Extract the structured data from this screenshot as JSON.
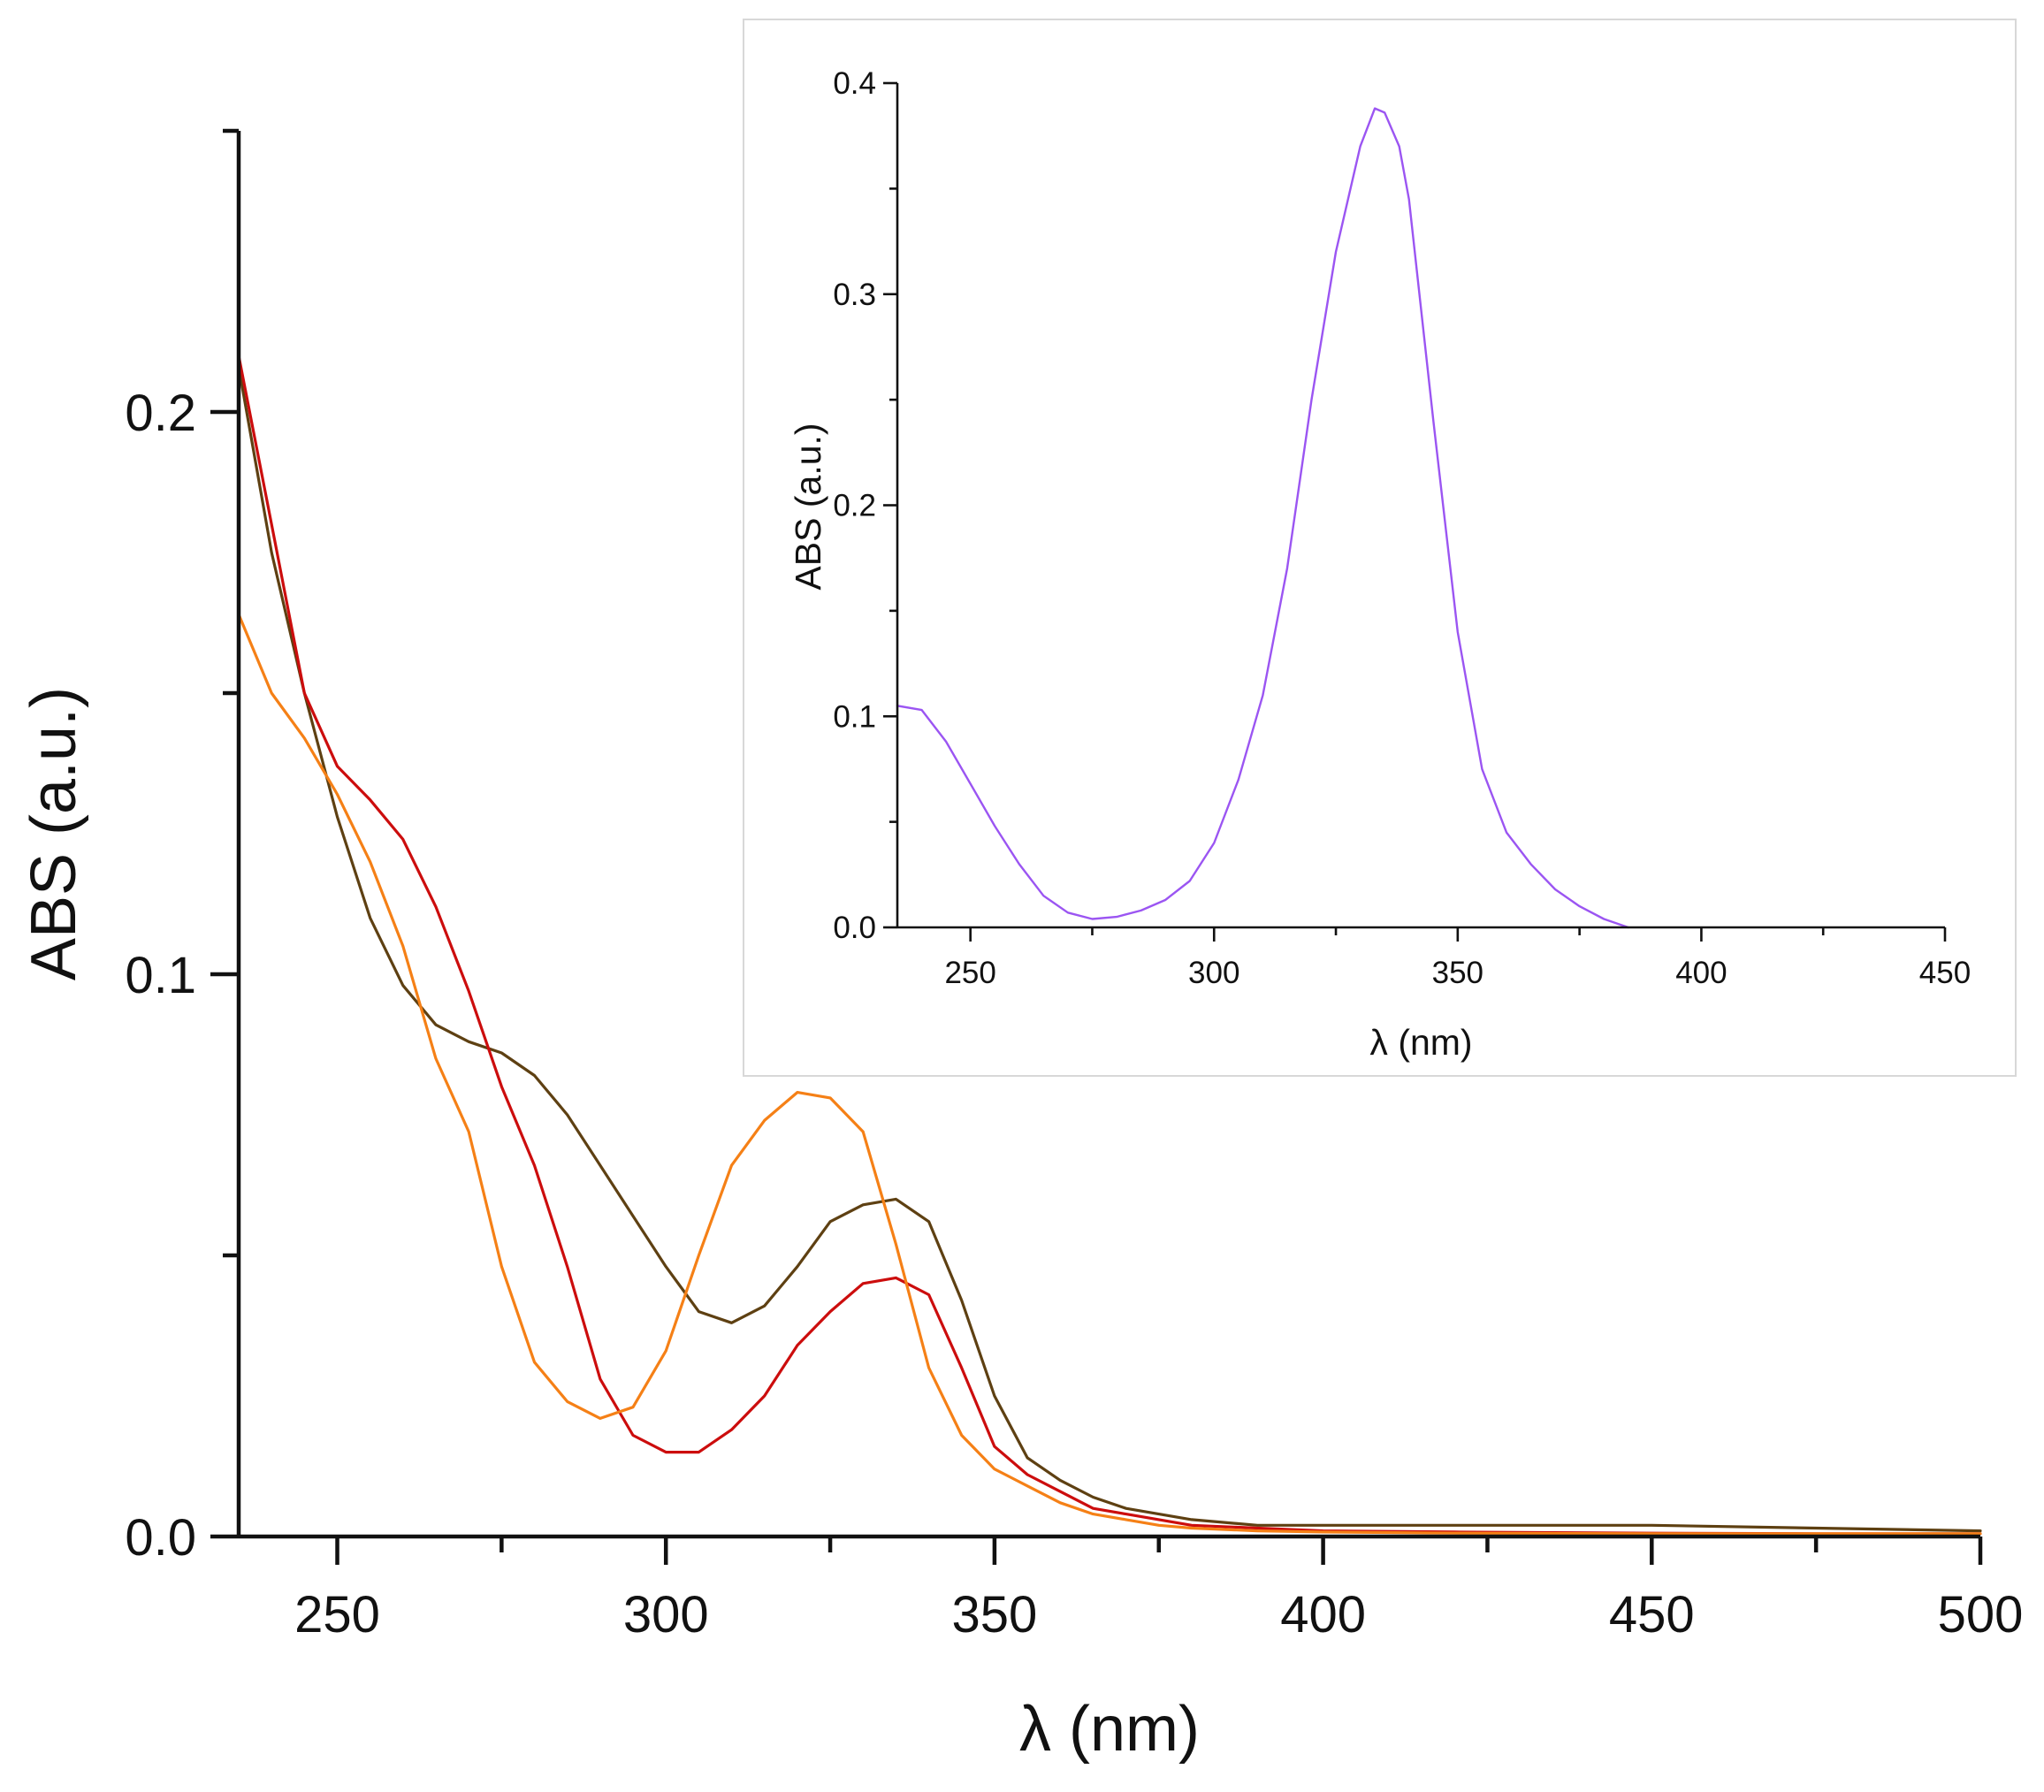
{
  "colors": {
    "series_brown": "#5e4012",
    "series_red": "#cc0d0d",
    "series_orange": "#f58016",
    "series_purple": "#9b55f2",
    "axis": "#111111",
    "inset_frame": "#d8d8d8"
  },
  "chart_data": [
    {
      "type": "line",
      "id": "main",
      "title": "",
      "xlabel": "λ (nm)",
      "ylabel": "ABS (a.u.)",
      "xlim": [
        235,
        500
      ],
      "ylim": [
        0,
        0.25
      ],
      "xticks": [
        250,
        300,
        350,
        400,
        450,
        500
      ],
      "xtick_labels": [
        "250",
        "300",
        "350",
        "400",
        "450",
        "500"
      ],
      "yticks": [
        0,
        0.1,
        0.2
      ],
      "ytick_labels": [
        "0.0",
        "0.1",
        "0.2"
      ],
      "grid": false,
      "legend": "none",
      "series": [
        {
          "name": "brown",
          "color": "#5e4012",
          "x": [
            235,
            240,
            245,
            250,
            255,
            260,
            265,
            270,
            275,
            280,
            285,
            290,
            295,
            300,
            305,
            310,
            315,
            320,
            325,
            330,
            335,
            340,
            345,
            350,
            355,
            360,
            365,
            370,
            375,
            380,
            390,
            400,
            420,
            450,
            475,
            500
          ],
          "y": [
            0.208,
            0.175,
            0.15,
            0.128,
            0.11,
            0.098,
            0.091,
            0.088,
            0.086,
            0.082,
            0.075,
            0.066,
            0.057,
            0.048,
            0.04,
            0.038,
            0.041,
            0.048,
            0.056,
            0.059,
            0.06,
            0.056,
            0.042,
            0.025,
            0.014,
            0.01,
            0.007,
            0.005,
            0.004,
            0.003,
            0.002,
            0.002,
            0.002,
            0.002,
            0.0015,
            0.001
          ]
        },
        {
          "name": "red",
          "color": "#cc0d0d",
          "x": [
            235,
            240,
            245,
            250,
            255,
            260,
            265,
            270,
            275,
            280,
            285,
            290,
            295,
            300,
            305,
            310,
            315,
            320,
            325,
            330,
            335,
            340,
            345,
            350,
            355,
            360,
            365,
            370,
            375,
            380,
            390,
            400,
            420,
            450,
            475,
            500
          ],
          "y": [
            0.21,
            0.18,
            0.15,
            0.137,
            0.131,
            0.124,
            0.112,
            0.097,
            0.08,
            0.066,
            0.048,
            0.028,
            0.018,
            0.015,
            0.015,
            0.019,
            0.025,
            0.034,
            0.04,
            0.045,
            0.046,
            0.043,
            0.03,
            0.016,
            0.011,
            0.008,
            0.005,
            0.004,
            0.003,
            0.002,
            0.0015,
            0.001,
            0.0008,
            0.0006,
            0.0005,
            0.0005
          ]
        },
        {
          "name": "orange",
          "color": "#f58016",
          "x": [
            235,
            240,
            245,
            250,
            255,
            260,
            265,
            270,
            275,
            280,
            285,
            290,
            295,
            300,
            305,
            310,
            315,
            320,
            325,
            330,
            335,
            340,
            345,
            350,
            355,
            360,
            365,
            370,
            375,
            380,
            390,
            400,
            420,
            450,
            475,
            500
          ],
          "y": [
            0.164,
            0.15,
            0.142,
            0.132,
            0.12,
            0.105,
            0.085,
            0.072,
            0.048,
            0.031,
            0.024,
            0.021,
            0.023,
            0.033,
            0.05,
            0.066,
            0.074,
            0.079,
            0.078,
            0.072,
            0.052,
            0.03,
            0.018,
            0.012,
            0.009,
            0.006,
            0.004,
            0.003,
            0.002,
            0.0015,
            0.001,
            0.0008,
            0.0006,
            0.0005,
            0.0005,
            0.0005
          ]
        }
      ]
    },
    {
      "type": "line",
      "id": "inset",
      "title": "",
      "xlabel": "λ (nm)",
      "ylabel": "ABS (a.u.)",
      "xlim": [
        235,
        450
      ],
      "ylim": [
        0,
        0.4
      ],
      "xticks": [
        250,
        300,
        350,
        400,
        450
      ],
      "xtick_labels": [
        "250",
        "300",
        "350",
        "400",
        "450"
      ],
      "yticks": [
        0,
        0.1,
        0.2,
        0.3,
        0.4
      ],
      "ytick_labels": [
        "0.0",
        "0.1",
        "0.2",
        "0.3",
        "0.4"
      ],
      "grid": false,
      "legend": "none",
      "series": [
        {
          "name": "purple",
          "color": "#9b55f2",
          "x": [
            235,
            240,
            245,
            250,
            255,
            260,
            265,
            270,
            275,
            280,
            285,
            290,
            295,
            300,
            305,
            310,
            315,
            320,
            325,
            330,
            333,
            335,
            338,
            340,
            345,
            350,
            355,
            360,
            365,
            370,
            375,
            380,
            385
          ],
          "y": [
            0.105,
            0.103,
            0.088,
            0.068,
            0.048,
            0.03,
            0.015,
            0.007,
            0.004,
            0.005,
            0.008,
            0.013,
            0.022,
            0.04,
            0.07,
            0.11,
            0.17,
            0.25,
            0.32,
            0.37,
            0.388,
            0.386,
            0.37,
            0.345,
            0.24,
            0.14,
            0.075,
            0.045,
            0.03,
            0.018,
            0.01,
            0.004,
            0.0
          ]
        }
      ]
    }
  ]
}
